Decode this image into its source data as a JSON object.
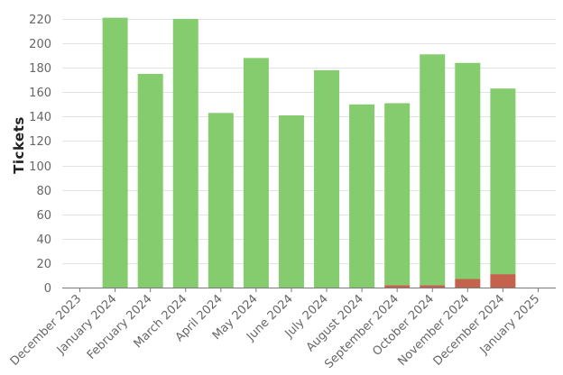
{
  "chart_data": {
    "type": "bar",
    "stacked": true,
    "title": "",
    "xlabel": "",
    "ylabel": "Tickets",
    "ylim": [
      0,
      220
    ],
    "yticks": [
      0,
      20,
      40,
      60,
      80,
      100,
      120,
      140,
      160,
      180,
      200,
      220
    ],
    "grid": true,
    "legend": "none",
    "categories": [
      "December 2023",
      "January 2024",
      "February 2024",
      "March 2024",
      "April 2024",
      "May 2024",
      "June 2024",
      "July 2024",
      "August 2024",
      "September 2024",
      "October 2024",
      "November 2024",
      "December 2024",
      "January 2025"
    ],
    "series": [
      {
        "color": "#c4624e",
        "values": [
          0,
          0,
          0,
          0,
          0,
          0,
          0,
          0,
          0,
          2,
          2,
          7,
          11,
          0
        ]
      },
      {
        "color": "#84cc6e",
        "values": [
          0,
          221,
          175,
          220,
          143,
          188,
          141,
          178,
          150,
          149,
          189,
          177,
          152,
          0
        ]
      }
    ]
  }
}
